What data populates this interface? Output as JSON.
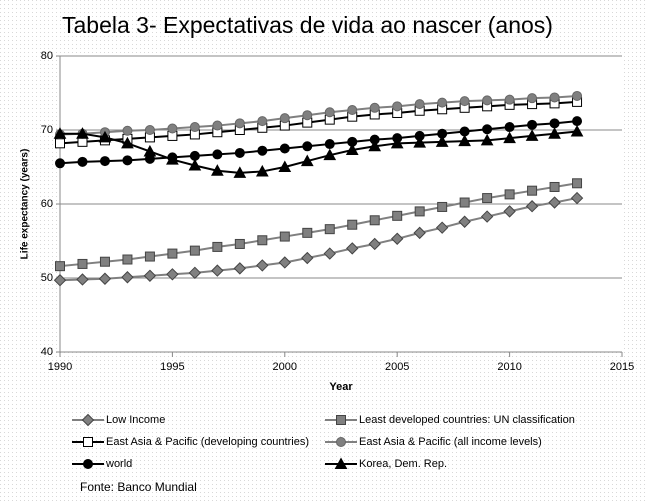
{
  "chart_data": {
    "type": "line",
    "title": "Tabela 3- Expectativas de vida ao nascer (anos)",
    "xlabel": "Year",
    "ylabel": "Life expectancy (years)",
    "source": "Fonte: Banco Mundial",
    "x": [
      1990,
      1991,
      1992,
      1993,
      1994,
      1995,
      1996,
      1997,
      1998,
      1999,
      2000,
      2001,
      2002,
      2003,
      2004,
      2005,
      2006,
      2007,
      2008,
      2009,
      2010,
      2011,
      2012,
      2013
    ],
    "xlim": [
      1990,
      2015
    ],
    "xticks": [
      1990,
      1995,
      2000,
      2005,
      2010,
      2015
    ],
    "ylim": [
      40,
      80
    ],
    "yticks": [
      40,
      50,
      60,
      70,
      80
    ],
    "grid": true,
    "series": [
      {
        "name": "Low Income",
        "color": "#808080",
        "marker": "diamond",
        "values": [
          49.7,
          49.8,
          49.9,
          50.1,
          50.3,
          50.5,
          50.7,
          51.0,
          51.3,
          51.7,
          52.1,
          52.7,
          53.3,
          54.0,
          54.6,
          55.3,
          56.1,
          56.8,
          57.6,
          58.3,
          59.0,
          59.7,
          60.2,
          60.8
        ]
      },
      {
        "name": "Least developed countries: UN classification",
        "color": "#808080",
        "marker": "square",
        "values": [
          51.6,
          51.9,
          52.2,
          52.5,
          52.9,
          53.3,
          53.7,
          54.2,
          54.6,
          55.1,
          55.6,
          56.1,
          56.6,
          57.2,
          57.8,
          58.4,
          59.0,
          59.6,
          60.2,
          60.8,
          61.3,
          61.8,
          62.3,
          62.8
        ]
      },
      {
        "name": "East Asia & Pacific (developing countries)",
        "color": "#000000",
        "marker": "open-square",
        "values": [
          68.2,
          68.4,
          68.6,
          68.8,
          69.0,
          69.2,
          69.4,
          69.7,
          70.0,
          70.3,
          70.6,
          71.0,
          71.4,
          71.8,
          72.1,
          72.3,
          72.6,
          72.8,
          73.0,
          73.2,
          73.4,
          73.5,
          73.6,
          73.8
        ]
      },
      {
        "name": "East Asia & Pacific (all income levels)",
        "color": "#808080",
        "marker": "circle",
        "values": [
          69.4,
          69.5,
          69.7,
          69.9,
          70.0,
          70.2,
          70.4,
          70.6,
          70.9,
          71.2,
          71.6,
          72.0,
          72.4,
          72.7,
          73.0,
          73.2,
          73.5,
          73.7,
          73.9,
          74.0,
          74.1,
          74.3,
          74.4,
          74.6
        ]
      },
      {
        "name": "world",
        "color": "#000000",
        "marker": "circle",
        "values": [
          65.5,
          65.7,
          65.8,
          65.9,
          66.1,
          66.3,
          66.5,
          66.7,
          66.9,
          67.2,
          67.5,
          67.8,
          68.1,
          68.4,
          68.7,
          68.9,
          69.2,
          69.5,
          69.8,
          70.1,
          70.4,
          70.7,
          70.9,
          71.2
        ]
      },
      {
        "name": "Korea, Dem. Rep.",
        "color": "#000000",
        "marker": "triangle",
        "values": [
          69.5,
          69.5,
          69.0,
          68.2,
          67.1,
          66.0,
          65.2,
          64.5,
          64.2,
          64.4,
          65.0,
          65.8,
          66.6,
          67.3,
          67.8,
          68.2,
          68.3,
          68.4,
          68.5,
          68.6,
          68.9,
          69.2,
          69.5,
          69.8
        ]
      }
    ]
  }
}
